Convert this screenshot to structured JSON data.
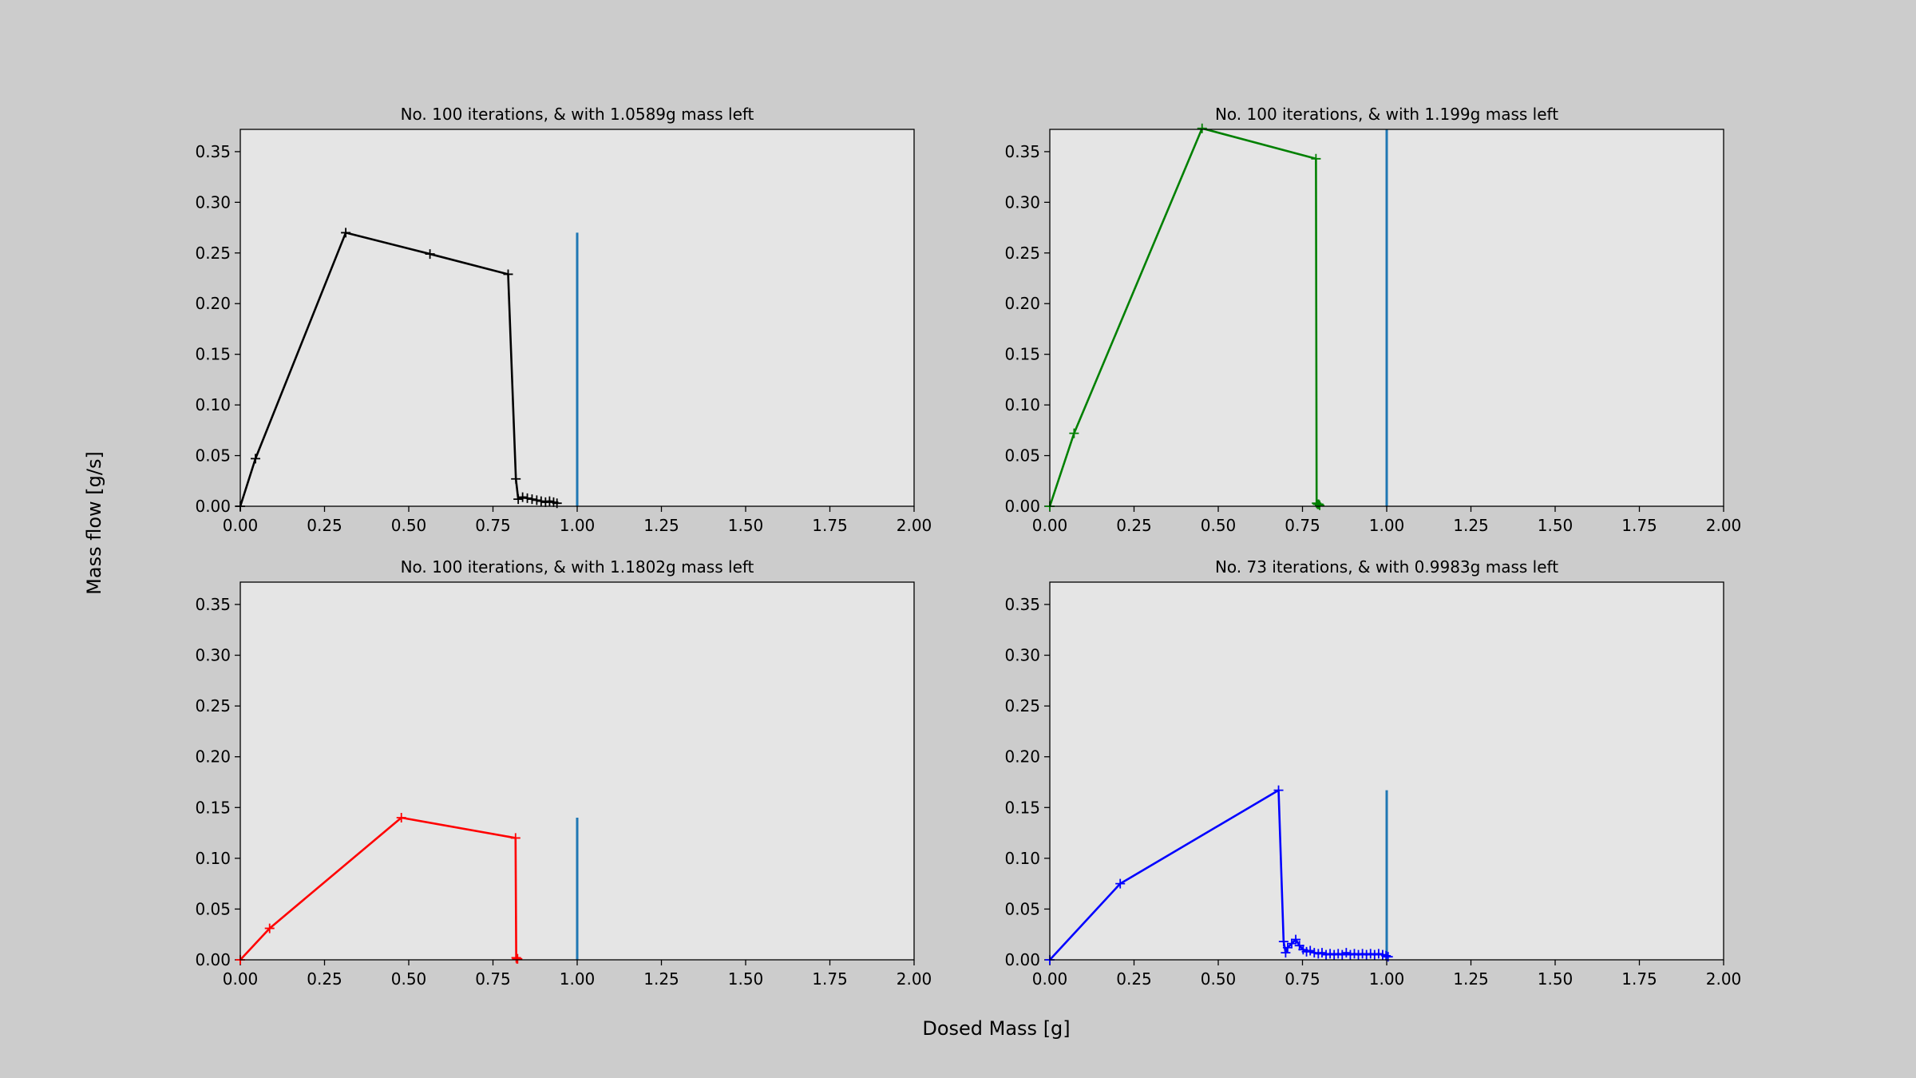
{
  "figure": {
    "background": "#cccccc",
    "axes_background": "#e5e5e5",
    "reference_color": "#1f77b4",
    "xlabel": "Dosed Mass [g]",
    "ylabel": "Mass flow [g/s]"
  },
  "chart_data": [
    {
      "type": "line",
      "title": "No. 100 iterations, & with 1.0589g mass left",
      "xlim": [
        0,
        2.0
      ],
      "ylim": [
        0,
        0.372
      ],
      "xticks": [
        "0.00",
        "0.25",
        "0.50",
        "0.75",
        "1.00",
        "1.25",
        "1.50",
        "1.75",
        "2.00"
      ],
      "yticks": [
        "0.00",
        "0.05",
        "0.10",
        "0.15",
        "0.20",
        "0.25",
        "0.30",
        "0.35"
      ],
      "grid": false,
      "series": [
        {
          "color": "#000000",
          "marker": "+",
          "points": [
            [
              0.0,
              0.0
            ],
            [
              0.045,
              0.047
            ],
            [
              0.313,
              0.27
            ],
            [
              0.563,
              0.249
            ],
            [
              0.795,
              0.229
            ],
            [
              0.818,
              0.027
            ],
            [
              0.825,
              0.007
            ],
            [
              0.838,
              0.009
            ],
            [
              0.852,
              0.008
            ],
            [
              0.866,
              0.007
            ],
            [
              0.88,
              0.006
            ],
            [
              0.893,
              0.005
            ],
            [
              0.906,
              0.004
            ],
            [
              0.918,
              0.005
            ],
            [
              0.93,
              0.004
            ],
            [
              0.94,
              0.003
            ]
          ]
        }
      ],
      "reference_line": {
        "x": 1.0,
        "y_top": 0.27
      }
    },
    {
      "type": "line",
      "title": "No. 100 iterations, & with 1.199g mass left",
      "xlim": [
        0,
        2.0
      ],
      "ylim": [
        0,
        0.372
      ],
      "xticks": [
        "0.00",
        "0.25",
        "0.50",
        "0.75",
        "1.00",
        "1.25",
        "1.50",
        "1.75",
        "2.00"
      ],
      "yticks": [
        "0.00",
        "0.05",
        "0.10",
        "0.15",
        "0.20",
        "0.25",
        "0.30",
        "0.35"
      ],
      "grid": false,
      "series": [
        {
          "color": "#008000",
          "marker": "+",
          "points": [
            [
              0.0,
              0.0
            ],
            [
              0.072,
              0.072
            ],
            [
              0.452,
              0.373
            ],
            [
              0.79,
              0.343
            ],
            [
              0.792,
              0.003
            ],
            [
              0.795,
              0.002
            ],
            [
              0.798,
              0.002
            ],
            [
              0.801,
              0.001
            ]
          ]
        }
      ],
      "reference_line": {
        "x": 1.0,
        "y_top": 0.372
      }
    },
    {
      "type": "line",
      "title": "No. 100 iterations, & with 1.1802g mass left",
      "xlim": [
        0,
        2.0
      ],
      "ylim": [
        0,
        0.372
      ],
      "xticks": [
        "0.00",
        "0.25",
        "0.50",
        "0.75",
        "1.00",
        "1.25",
        "1.50",
        "1.75",
        "2.00"
      ],
      "yticks": [
        "0.00",
        "0.05",
        "0.10",
        "0.15",
        "0.20",
        "0.25",
        "0.30",
        "0.35"
      ],
      "grid": false,
      "series": [
        {
          "color": "#ff0000",
          "marker": "+",
          "points": [
            [
              0.0,
              0.0
            ],
            [
              0.087,
              0.031
            ],
            [
              0.478,
              0.14
            ],
            [
              0.817,
              0.12
            ],
            [
              0.819,
              0.002
            ],
            [
              0.821,
              0.001
            ],
            [
              0.823,
              0.001
            ]
          ]
        }
      ],
      "reference_line": {
        "x": 1.0,
        "y_top": 0.14
      }
    },
    {
      "type": "line",
      "title": "No. 73 iterations, & with 0.9983g mass left",
      "xlim": [
        0,
        2.0
      ],
      "ylim": [
        0,
        0.372
      ],
      "xticks": [
        "0.00",
        "0.25",
        "0.50",
        "0.75",
        "1.00",
        "1.25",
        "1.50",
        "1.75",
        "2.00"
      ],
      "yticks": [
        "0.00",
        "0.05",
        "0.10",
        "0.15",
        "0.20",
        "0.25",
        "0.30",
        "0.35"
      ],
      "grid": false,
      "series": [
        {
          "color": "#0000ff",
          "marker": "+",
          "points": [
            [
              0.0,
              0.0
            ],
            [
              0.209,
              0.075
            ],
            [
              0.679,
              0.167
            ],
            [
              0.694,
              0.018
            ],
            [
              0.7,
              0.007
            ],
            [
              0.706,
              0.012
            ],
            [
              0.718,
              0.016
            ],
            [
              0.73,
              0.02
            ],
            [
              0.741,
              0.014
            ],
            [
              0.752,
              0.01
            ],
            [
              0.762,
              0.008
            ],
            [
              0.773,
              0.009
            ],
            [
              0.785,
              0.007
            ],
            [
              0.797,
              0.006
            ],
            [
              0.808,
              0.007
            ],
            [
              0.82,
              0.005
            ],
            [
              0.832,
              0.006
            ],
            [
              0.844,
              0.005
            ],
            [
              0.856,
              0.006
            ],
            [
              0.868,
              0.005
            ],
            [
              0.88,
              0.007
            ],
            [
              0.892,
              0.005
            ],
            [
              0.904,
              0.006
            ],
            [
              0.916,
              0.005
            ],
            [
              0.928,
              0.006
            ],
            [
              0.94,
              0.005
            ],
            [
              0.952,
              0.006
            ],
            [
              0.964,
              0.005
            ],
            [
              0.976,
              0.006
            ],
            [
              0.988,
              0.005
            ],
            [
              0.998,
              0.004
            ],
            [
              1.004,
              0.003
            ]
          ]
        }
      ],
      "reference_line": {
        "x": 1.0,
        "y_top": 0.167
      }
    }
  ]
}
